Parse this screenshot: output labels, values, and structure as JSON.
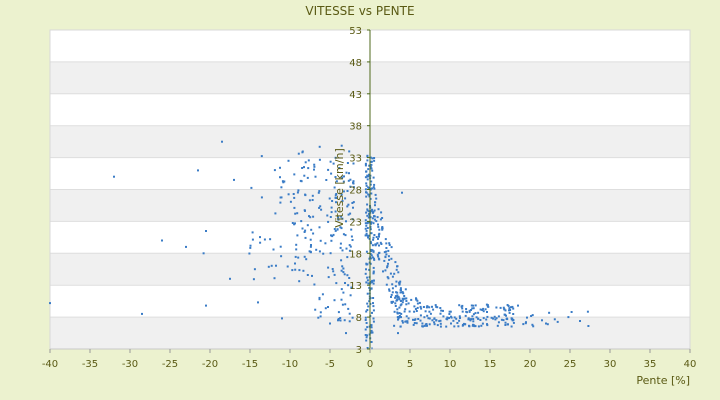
{
  "chart_data": {
    "type": "scatter",
    "title": "VITESSE vs PENTE",
    "xlabel": "Pente [%]",
    "ylabel": "Vitesse [km/h]",
    "xlim": [
      -40,
      40
    ],
    "ylim": [
      3,
      53
    ],
    "xticks": [
      -40,
      -35,
      -30,
      -25,
      -20,
      -15,
      -10,
      -5,
      0,
      5,
      10,
      15,
      20,
      25,
      30,
      35,
      40
    ],
    "yticks": [
      3,
      8,
      13,
      18,
      23,
      28,
      33,
      38,
      43,
      48,
      53
    ],
    "grid": true,
    "legend": "none",
    "colors": {
      "background": "#ecf2cf",
      "plot_area": "#ffffff",
      "band": "#f0f0f0",
      "axis_text": "#5a5a14",
      "point": "#3a7cc6",
      "zero_axis": "#4f6a1c"
    },
    "clusters": [
      {
        "region": "descent-scatter",
        "x_range": [
          -16,
          -2
        ],
        "y_range": [
          7,
          35
        ],
        "count": 240
      },
      {
        "region": "flat-vertical",
        "x_range": [
          -0.6,
          0.6
        ],
        "y_range": [
          3,
          34
        ],
        "count": 180
      },
      {
        "region": "transition",
        "x_range": [
          0.5,
          4
        ],
        "y_range": [
          8,
          26
        ],
        "count": 110
      },
      {
        "region": "climb-plateau",
        "x_range": [
          3,
          18
        ],
        "y_range": [
          6,
          14
        ],
        "count": 230
      },
      {
        "region": "steep-climb",
        "x_range": [
          17,
          28
        ],
        "y_range": [
          6,
          9
        ],
        "count": 16
      }
    ],
    "points": [
      [
        -40,
        10.2
      ],
      [
        -32,
        30
      ],
      [
        -28.5,
        8.5
      ],
      [
        -26,
        20
      ],
      [
        -23,
        19
      ],
      [
        -21.5,
        31
      ],
      [
        -20.5,
        21.5
      ],
      [
        -20.5,
        9.8
      ],
      [
        -20.8,
        18
      ],
      [
        -18.5,
        35.5
      ],
      [
        -17.5,
        14
      ],
      [
        -17,
        29.5
      ],
      [
        -14,
        10.3
      ],
      [
        -3,
        5.5
      ],
      [
        3.5,
        5.5
      ],
      [
        4,
        27.5
      ],
      [
        27.3,
        6.6
      ],
      [
        25.2,
        8.8
      ],
      [
        24.8,
        8
      ],
      [
        22,
        7
      ],
      [
        21.5,
        7.5
      ],
      [
        20.3,
        6.8
      ],
      [
        19.5,
        7.2
      ],
      [
        18.5,
        9.8
      ],
      [
        17.8,
        9.6
      ],
      [
        17.2,
        9.9
      ],
      [
        16.8,
        9.2
      ],
      [
        -11,
        7.8
      ],
      [
        -5,
        7
      ],
      [
        -4,
        7.5
      ]
    ]
  }
}
